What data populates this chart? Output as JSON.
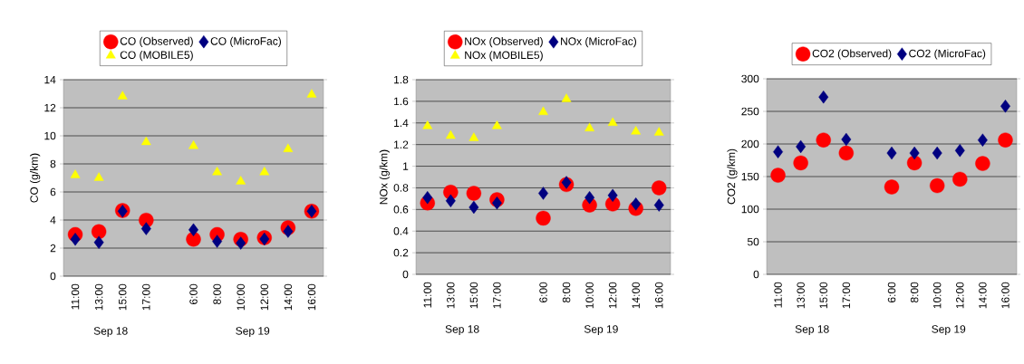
{
  "chart_data": [
    {
      "type": "scatter",
      "ylabel": "CO (g/km)",
      "categories": [
        "11:00",
        "13:00",
        "15:00",
        "17:00",
        null,
        "6:00",
        "8:00",
        "10:00",
        "12:00",
        "14:00",
        "16:00"
      ],
      "series": [
        {
          "name": "CO (Observed)",
          "color": "#ff0000",
          "marker": "circle",
          "values": [
            2.97,
            3.17,
            4.68,
            3.99,
            null,
            2.63,
            2.97,
            2.63,
            2.74,
            3.45,
            4.63
          ]
        },
        {
          "name": "CO (MicroFac)",
          "color": "#000080",
          "marker": "diamond",
          "values": [
            2.63,
            2.41,
            4.63,
            3.38,
            null,
            3.3,
            2.48,
            2.35,
            2.65,
            3.19,
            4.63
          ]
        },
        {
          "name": "CO (MOBILE5)",
          "color": "#ffff00",
          "marker": "triangle",
          "values": [
            7.2,
            7.0,
            12.8,
            9.55,
            null,
            9.27,
            7.4,
            6.75,
            7.4,
            9.05,
            12.93
          ]
        }
      ],
      "ylim": [
        0,
        14
      ],
      "yticks": [
        0,
        2,
        4,
        6,
        8,
        10,
        12,
        14
      ],
      "grid": "y",
      "legend": "top",
      "annotations": [
        "Sep 18",
        "Sep 19"
      ]
    },
    {
      "type": "scatter",
      "ylabel": "NOx (g/km)",
      "categories": [
        "11:00",
        "13:00",
        "15:00",
        "17:00",
        null,
        "6:00",
        "8:00",
        "10:00",
        "12:00",
        "14:00",
        "16:00"
      ],
      "series": [
        {
          "name": "NOx (Observed)",
          "color": "#ff0000",
          "marker": "circle",
          "values": [
            0.66,
            0.76,
            0.75,
            0.69,
            null,
            0.52,
            0.83,
            0.64,
            0.65,
            0.61,
            0.8
          ]
        },
        {
          "name": "NOx (MicroFac)",
          "color": "#000080",
          "marker": "diamond",
          "values": [
            0.71,
            0.68,
            0.62,
            0.66,
            null,
            0.75,
            0.85,
            0.71,
            0.73,
            0.65,
            0.64
          ]
        },
        {
          "name": "NOx (MOBILE5)",
          "color": "#ffff00",
          "marker": "triangle",
          "values": [
            1.37,
            1.28,
            1.26,
            1.37,
            null,
            1.5,
            1.62,
            1.35,
            1.4,
            1.32,
            1.31
          ]
        }
      ],
      "ylim": [
        0,
        1.8
      ],
      "yticks": [
        0,
        0.2,
        0.4,
        0.6,
        0.8,
        1,
        1.2,
        1.4,
        1.6,
        1.8
      ],
      "grid": "y",
      "legend": "top",
      "annotations": [
        "Sep 18",
        "Sep 19"
      ]
    },
    {
      "type": "scatter",
      "ylabel": "CO2 (g/km)",
      "categories": [
        "11:00",
        "13:00",
        "15:00",
        "17:00",
        null,
        "6:00",
        "8:00",
        "10:00",
        "12:00",
        "14:00",
        "16:00"
      ],
      "series": [
        {
          "name": "CO2 (Observed)",
          "color": "#ff0000",
          "marker": "circle",
          "values": [
            152,
            171,
            206,
            186,
            null,
            134,
            171,
            136,
            146,
            170,
            206
          ]
        },
        {
          "name": "CO2 (MicroFac)",
          "color": "#000080",
          "marker": "diamond",
          "values": [
            188,
            196,
            272,
            207,
            null,
            186,
            186,
            186,
            190,
            206,
            258
          ]
        }
      ],
      "ylim": [
        0,
        300
      ],
      "yticks": [
        0,
        50,
        100,
        150,
        200,
        250,
        300
      ],
      "grid": "y",
      "legend": "top",
      "annotations": [
        "Sep 18",
        "Sep 19"
      ]
    }
  ]
}
